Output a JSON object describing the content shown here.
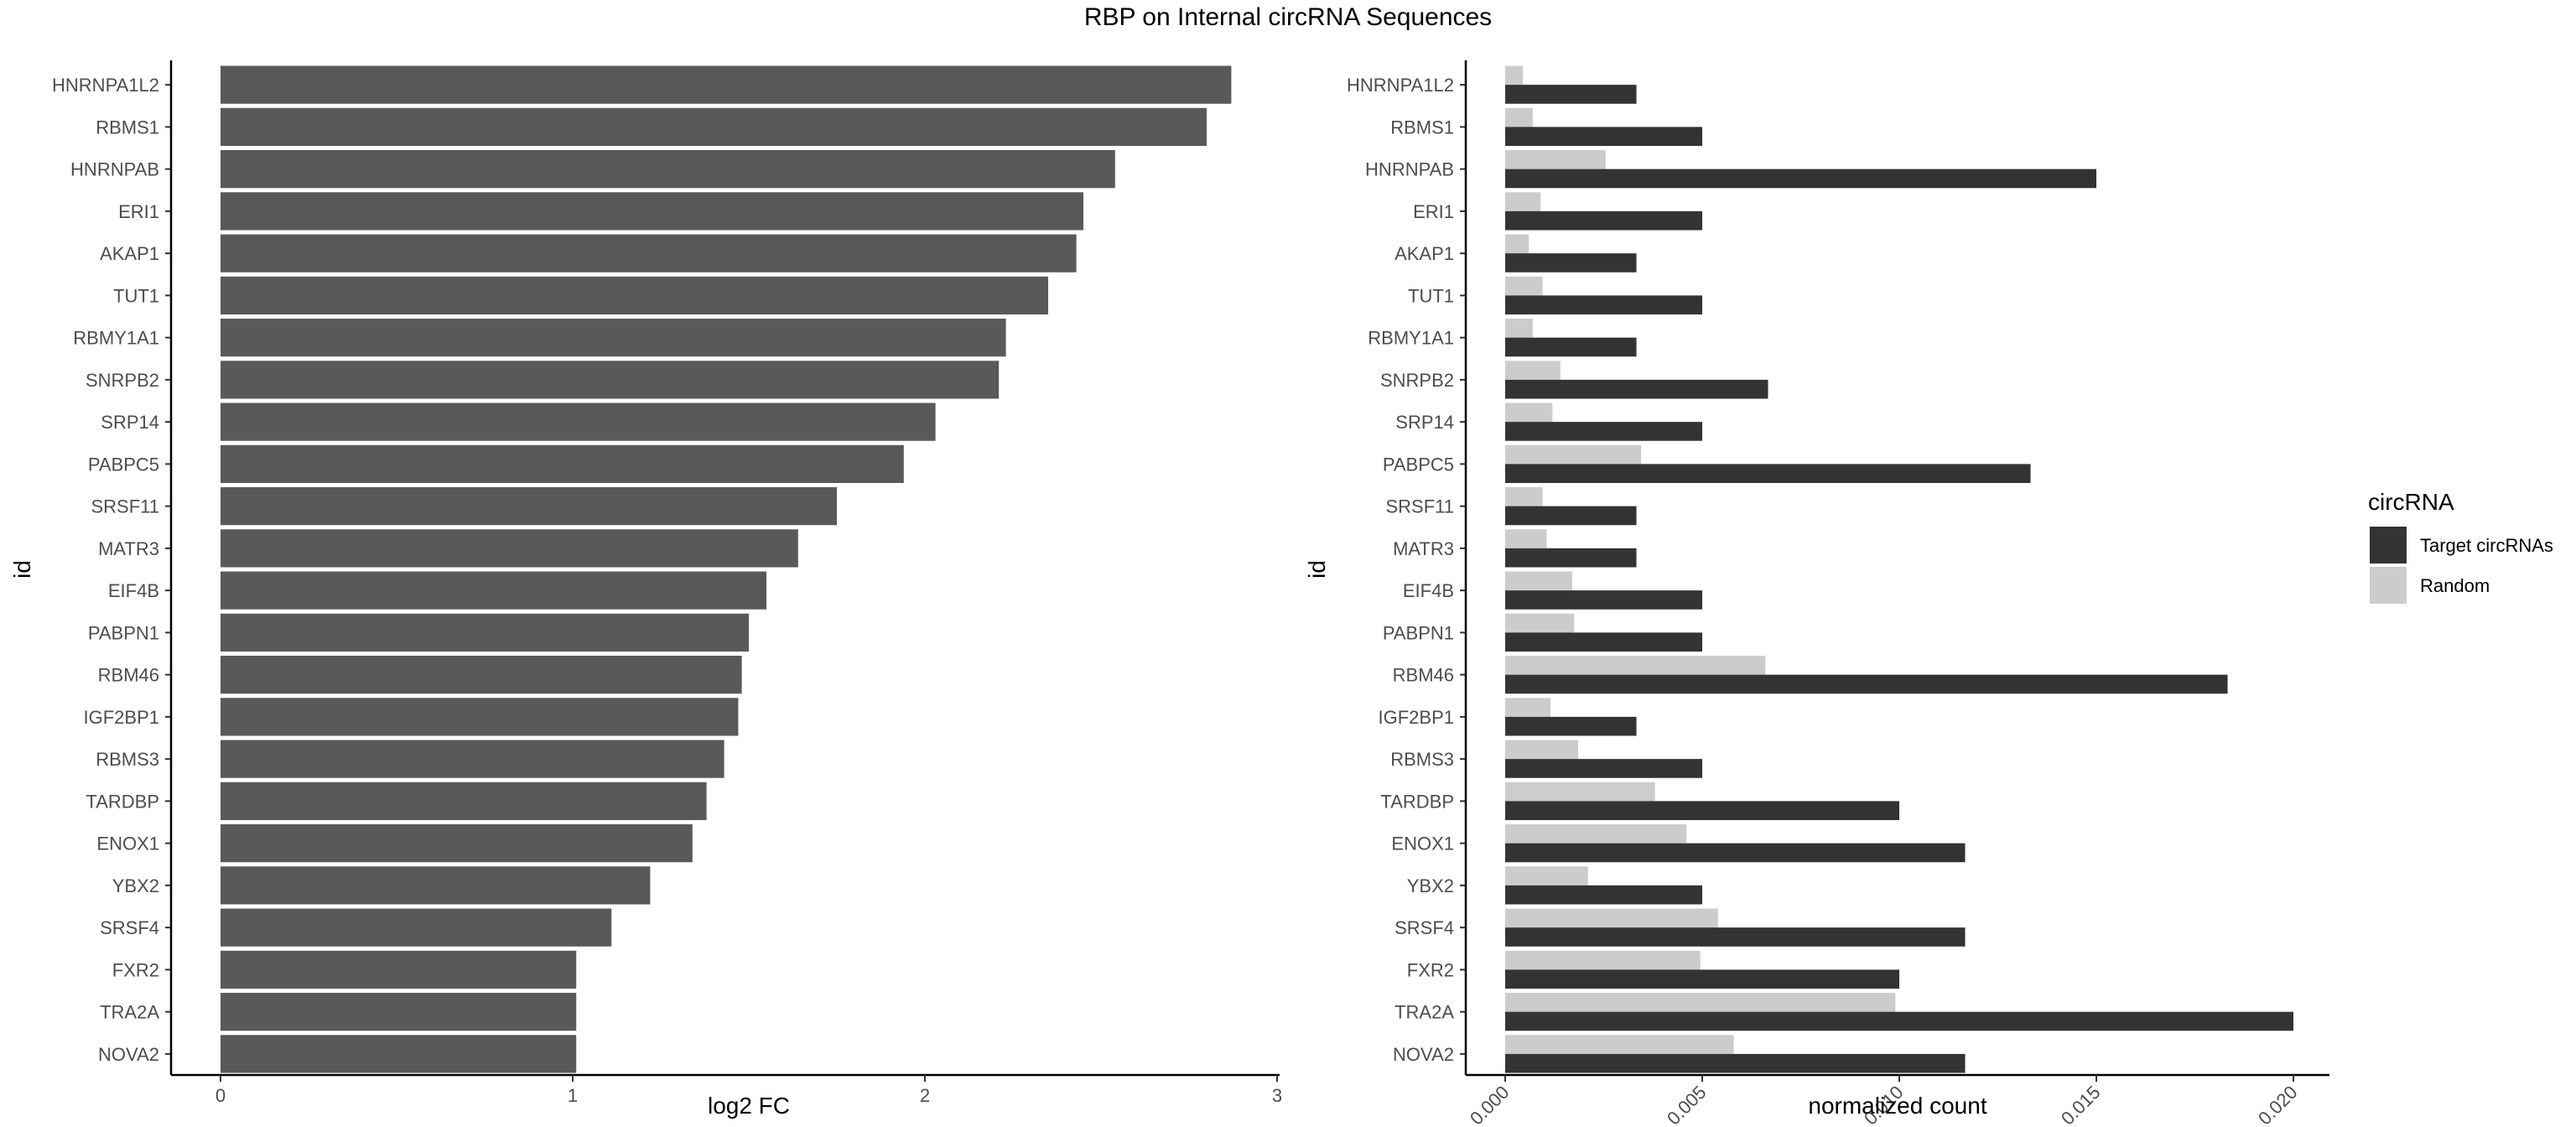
{
  "title": "RBP on Internal circRNA Sequences",
  "chart_data": [
    {
      "type": "bar",
      "orientation": "horizontal",
      "xlabel": "log2 FC",
      "ylabel": "id",
      "xlim": [
        0,
        3
      ],
      "xticks": [
        "0",
        "1",
        "2",
        "3"
      ],
      "grid": false,
      "categories": [
        "HNRNPA1L2",
        "RBMS1",
        "HNRNPAB",
        "ERI1",
        "AKAP1",
        "TUT1",
        "RBMY1A1",
        "SNRPB2",
        "SRP14",
        "PABPC5",
        "SRSF11",
        "MATR3",
        "EIF4B",
        "PABPN1",
        "RBM46",
        "IGF2BP1",
        "RBMS3",
        "TARDBP",
        "ENOX1",
        "YBX2",
        "SRSF4",
        "FXR2",
        "TRA2A",
        "NOVA2"
      ],
      "values": [
        2.87,
        2.8,
        2.54,
        2.45,
        2.43,
        2.35,
        2.23,
        2.21,
        2.03,
        1.94,
        1.75,
        1.64,
        1.55,
        1.5,
        1.48,
        1.47,
        1.43,
        1.38,
        1.34,
        1.22,
        1.11,
        1.01,
        1.01,
        1.01
      ],
      "color": "#595959"
    },
    {
      "type": "bar",
      "orientation": "horizontal",
      "xlabel": "normalized count",
      "ylabel": "id",
      "xlim": [
        -0.001,
        0.021
      ],
      "xticks": [
        "0.000",
        "0.005",
        "0.010",
        "0.015",
        "0.020"
      ],
      "grid": false,
      "categories": [
        "HNRNPA1L2",
        "RBMS1",
        "HNRNPAB",
        "ERI1",
        "AKAP1",
        "TUT1",
        "RBMY1A1",
        "SNRPB2",
        "SRP14",
        "PABPC5",
        "SRSF11",
        "MATR3",
        "EIF4B",
        "PABPN1",
        "RBM46",
        "IGF2BP1",
        "RBMS3",
        "TARDBP",
        "ENOX1",
        "YBX2",
        "SRSF4",
        "FXR2",
        "TRA2A",
        "NOVA2"
      ],
      "series": [
        {
          "name": "Target circRNAs",
          "color": "#333333",
          "values": [
            0.00333,
            0.005,
            0.015,
            0.005,
            0.00333,
            0.005,
            0.00333,
            0.00667,
            0.005,
            0.01333,
            0.00333,
            0.00333,
            0.005,
            0.005,
            0.01833,
            0.00333,
            0.005,
            0.01,
            0.01167,
            0.005,
            0.01167,
            0.01,
            0.02,
            0.01167
          ]
        },
        {
          "name": "Random",
          "color": "#cccccc",
          "values": [
            0.00045,
            0.0007,
            0.00255,
            0.0009,
            0.0006,
            0.00095,
            0.0007,
            0.0014,
            0.0012,
            0.00345,
            0.00095,
            0.00105,
            0.0017,
            0.00175,
            0.0066,
            0.00115,
            0.00185,
            0.0038,
            0.0046,
            0.0021,
            0.0054,
            0.00495,
            0.0099,
            0.0058
          ]
        }
      ],
      "legend": {
        "title": "circRNA",
        "placement": "right"
      }
    }
  ]
}
